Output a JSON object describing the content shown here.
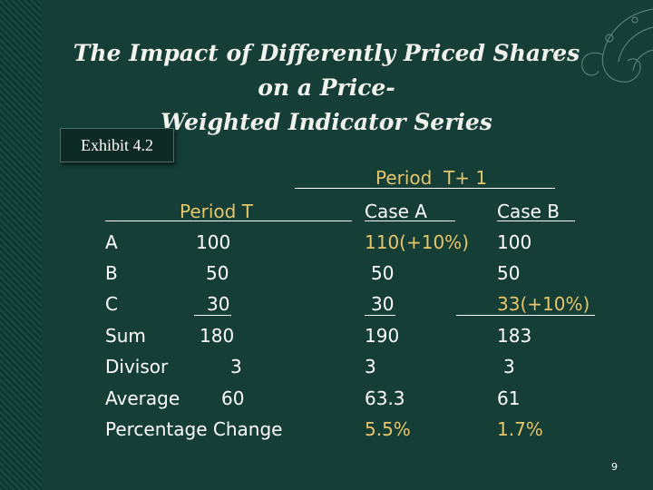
{
  "slide": {
    "title_line1": "The Impact of Differently Priced Shares on a Price-",
    "title_line2": "Weighted Indicator Series",
    "exhibit_label": "Exhibit 4.2",
    "page_number": "9"
  },
  "table": {
    "period_t1_header": "Period  T+ 1",
    "period_t_header": "Period T",
    "case_a_header": "Case A",
    "case_b_header": "Case B",
    "rows": [
      {
        "label": "A",
        "period_t": "100",
        "case_a": "110(+10%)",
        "case_b": "100"
      },
      {
        "label": "B",
        "period_t": "50",
        "case_a": "50",
        "case_b": "50"
      },
      {
        "label": "C",
        "period_t": "30",
        "case_a": "30",
        "case_b": "33(+10%)"
      },
      {
        "label": "Sum",
        "period_t": "180",
        "case_a": "190",
        "case_b": "183"
      },
      {
        "label": "Divisor",
        "period_t": "3",
        "case_a": "3",
        "case_b": "3"
      },
      {
        "label": "Average",
        "period_t": "60",
        "case_a": "63.3",
        "case_b": "61"
      },
      {
        "label": "Percentage Change",
        "period_t": "",
        "case_a": "5.5%",
        "case_b": "1.7%"
      }
    ]
  },
  "colors": {
    "background": "#143e36",
    "accent_gold": "#e7c56a",
    "text": "#ffffff"
  }
}
